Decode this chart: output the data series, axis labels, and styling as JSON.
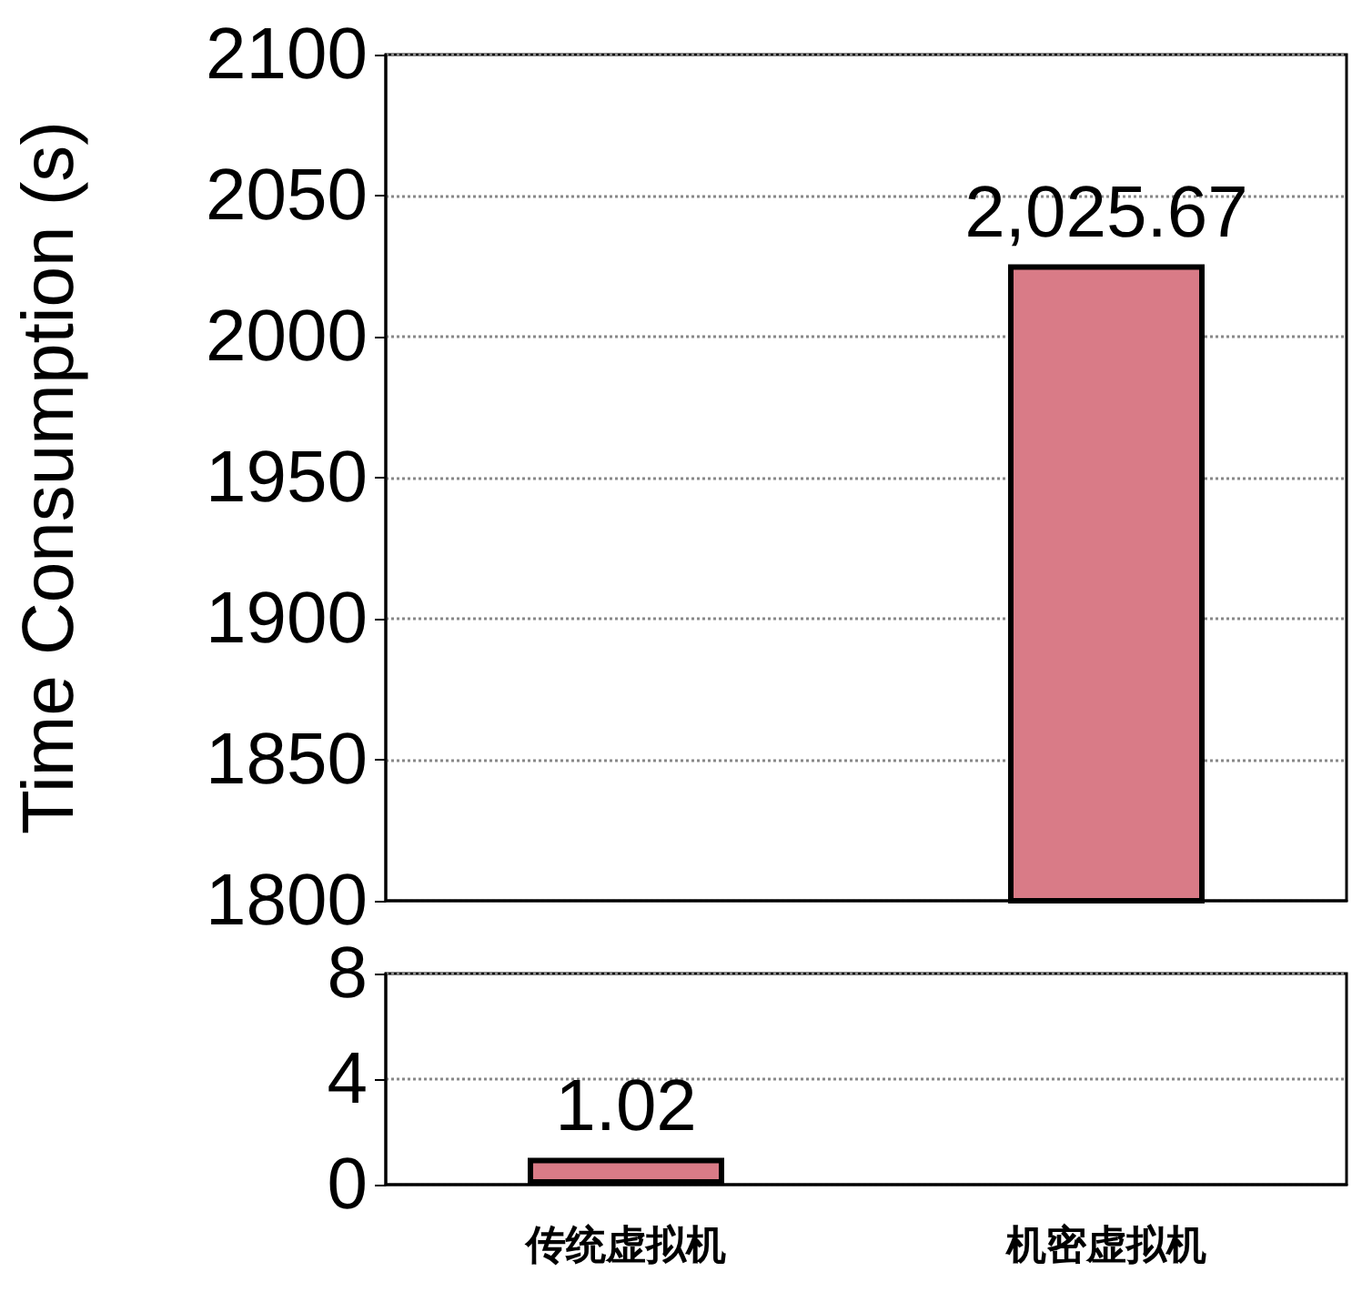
{
  "chart_data": [
    {
      "type": "bar",
      "ylabel": "Time Consumption (s)",
      "categories": [
        null,
        null
      ],
      "values": [
        null,
        2025.67
      ],
      "color": "#d97b87",
      "value_labels": [
        null,
        "2,025.67"
      ],
      "ylim": [
        1800,
        2100
      ],
      "yticks": [
        1800,
        1850,
        1900,
        1950,
        2000,
        2050,
        2100
      ],
      "grid": "y",
      "tick_labels": "y"
    },
    {
      "type": "bar",
      "categories": [
        "传统虚拟机",
        "机密虚拟机"
      ],
      "values": [
        1.02,
        null
      ],
      "color": "#d97b87",
      "value_labels": [
        "1.02",
        null
      ],
      "ylim": [
        0,
        8
      ],
      "yticks": [
        0,
        4,
        8
      ],
      "grid": "y"
    }
  ]
}
